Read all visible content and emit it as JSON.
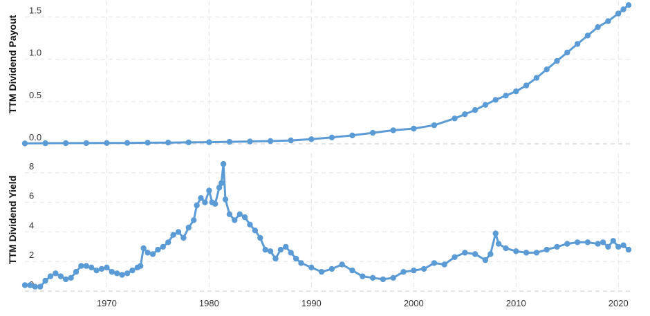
{
  "chart_data": [
    {
      "type": "line",
      "title": "",
      "xlabel": "",
      "ylabel": "TTM Dividend Payout",
      "ylim": [
        0,
        1.7
      ],
      "xlim": [
        1962.0,
        2021.2
      ],
      "yticks": [
        "0.0",
        "0.5",
        "1.0",
        "1.5"
      ],
      "ytick_values": [
        0,
        0.5,
        1.0,
        1.5
      ],
      "grid": true,
      "series": [
        {
          "color": "#5b9bd5",
          "x": [
            1962,
            1964,
            1966,
            1968,
            1970,
            1972,
            1974,
            1976,
            1978,
            1980,
            1982,
            1984,
            1986,
            1988,
            1990,
            1992,
            1994,
            1996,
            1998,
            2000,
            2002,
            2004,
            2005,
            2006,
            2007,
            2008,
            2009,
            2010,
            2011,
            2012,
            2013,
            2014,
            2015,
            2016,
            2017,
            2018,
            2019,
            2020,
            2020.5,
            2021
          ],
          "values": [
            0.005,
            0.007,
            0.008,
            0.009,
            0.01,
            0.011,
            0.013,
            0.015,
            0.017,
            0.02,
            0.024,
            0.028,
            0.033,
            0.04,
            0.055,
            0.075,
            0.1,
            0.13,
            0.16,
            0.18,
            0.22,
            0.3,
            0.35,
            0.4,
            0.46,
            0.52,
            0.57,
            0.62,
            0.69,
            0.78,
            0.88,
            0.98,
            1.08,
            1.18,
            1.28,
            1.38,
            1.45,
            1.54,
            1.59,
            1.64
          ]
        }
      ]
    },
    {
      "type": "line",
      "title": "",
      "xlabel": "",
      "ylabel": "TTM Dividend Yield",
      "ylim": [
        0,
        9.4
      ],
      "xlim": [
        1962.0,
        2021.2
      ],
      "yticks": [
        "0",
        "2",
        "4",
        "6",
        "8"
      ],
      "ytick_values": [
        0,
        2,
        4,
        6,
        8
      ],
      "xticks": [
        "1970",
        "1980",
        "1990",
        "2000",
        "2010",
        "2020"
      ],
      "xtick_values": [
        1970,
        1980,
        1990,
        2000,
        2010,
        2020
      ],
      "grid": true,
      "series": [
        {
          "color": "#5b9bd5",
          "x": [
            1962,
            1962.5,
            1963,
            1963.5,
            1964,
            1964.5,
            1965,
            1965.5,
            1966,
            1966.5,
            1967,
            1967.5,
            1968,
            1968.5,
            1969,
            1969.5,
            1970,
            1970.5,
            1971,
            1971.5,
            1972,
            1972.5,
            1973,
            1973.3,
            1973.6,
            1974,
            1974.5,
            1975,
            1975.5,
            1976,
            1976.5,
            1977,
            1977.5,
            1978,
            1978.5,
            1978.8,
            1979.2,
            1979.6,
            1980,
            1980.3,
            1980.6,
            1981,
            1981.2,
            1981.4,
            1981.6,
            1982,
            1982.5,
            1983,
            1983.5,
            1984,
            1984.5,
            1985,
            1985.5,
            1986,
            1986.5,
            1987,
            1987.5,
            1988,
            1988.5,
            1989,
            1990,
            1991,
            1992,
            1993,
            1994,
            1995,
            1996,
            1997,
            1998,
            1999,
            2000,
            2001,
            2002,
            2003,
            2004,
            2005,
            2006,
            2007,
            2007.5,
            2008,
            2008.3,
            2009,
            2010,
            2011,
            2012,
            2013,
            2014,
            2015,
            2016,
            2017,
            2018,
            2018.5,
            2019,
            2019.5,
            2020,
            2020.5,
            2021
          ],
          "values": [
            0.4,
            0.4,
            0.3,
            0.3,
            0.7,
            1.0,
            1.2,
            1.0,
            0.8,
            0.9,
            1.3,
            1.7,
            1.7,
            1.6,
            1.4,
            1.5,
            1.6,
            1.3,
            1.2,
            1.1,
            1.2,
            1.4,
            1.6,
            1.7,
            2.9,
            2.6,
            2.5,
            2.8,
            3.0,
            3.3,
            3.8,
            4.0,
            3.6,
            4.3,
            4.8,
            5.8,
            6.3,
            6.0,
            6.8,
            6.0,
            5.9,
            7.0,
            7.3,
            8.6,
            6.2,
            5.2,
            4.8,
            5.2,
            5.0,
            4.5,
            4.1,
            3.6,
            2.8,
            2.7,
            2.2,
            2.8,
            3.0,
            2.6,
            2.2,
            1.9,
            1.6,
            1.3,
            1.5,
            1.8,
            1.4,
            1.0,
            0.9,
            0.8,
            0.9,
            1.3,
            1.4,
            1.5,
            1.9,
            1.8,
            2.3,
            2.6,
            2.5,
            2.1,
            2.5,
            3.9,
            3.2,
            2.9,
            2.7,
            2.6,
            2.6,
            2.8,
            3.0,
            3.2,
            3.3,
            3.3,
            3.2,
            3.3,
            3.0,
            3.4,
            3.0,
            3.1,
            2.8
          ]
        }
      ]
    }
  ]
}
